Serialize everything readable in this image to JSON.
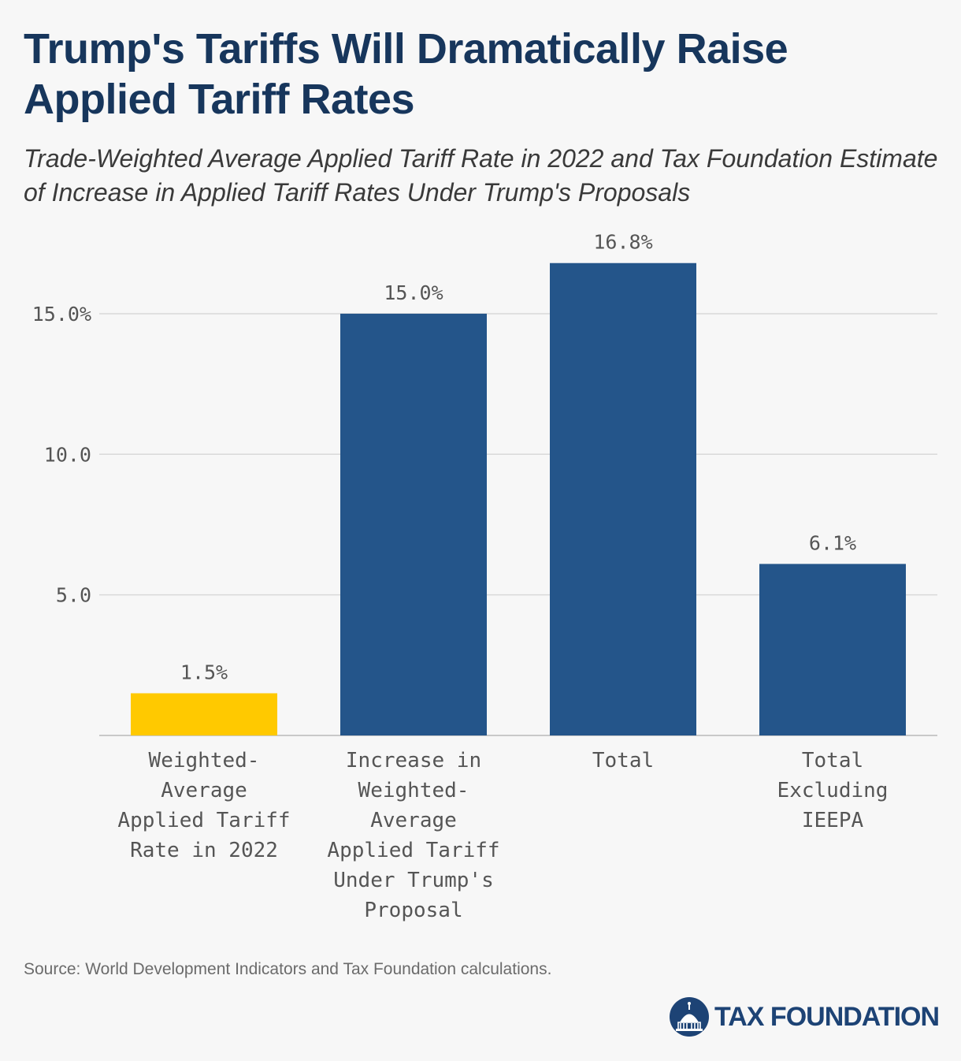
{
  "header": {
    "title": "Trump's Tariffs Will Dramatically Raise Applied Tariff Rates",
    "subtitle": "Trade-Weighted Average Applied Tariff Rate in 2022 and Tax Foundation Estimate of Increase in Applied Tariff Rates Under Trump's Proposals"
  },
  "footer": {
    "source": "Source: World Development Indicators and Tax Foundation calculations.",
    "brand": "TAX FOUNDATION"
  },
  "colors": {
    "title": "#17365c",
    "bar_primary": "#24558a",
    "bar_highlight": "#ffc900",
    "logo": "#1d4375",
    "gridline": "#d9d9d9"
  },
  "chart_data": {
    "type": "bar",
    "categories": [
      [
        "Weighted-",
        "Average",
        "Applied Tariff",
        "Rate in 2022"
      ],
      [
        "Increase in",
        "Weighted-",
        "Average",
        "Applied Tariff",
        "Under Trump's",
        "Proposal"
      ],
      [
        "Total"
      ],
      [
        "Total",
        "Excluding",
        "IEEPA"
      ]
    ],
    "values": [
      1.5,
      15.0,
      16.8,
      6.1
    ],
    "data_labels": [
      "1.5%",
      "15.0%",
      "16.8%",
      "6.1%"
    ],
    "bar_colors": [
      "#ffc900",
      "#24558a",
      "#24558a",
      "#24558a"
    ],
    "yticks": [
      {
        "value": 5,
        "label": "5.0"
      },
      {
        "value": 10,
        "label": "10.0"
      },
      {
        "value": 15,
        "label": "15.0%"
      }
    ],
    "ylim": [
      0,
      16.8
    ],
    "grid": true,
    "xlabel": "",
    "ylabel": ""
  }
}
